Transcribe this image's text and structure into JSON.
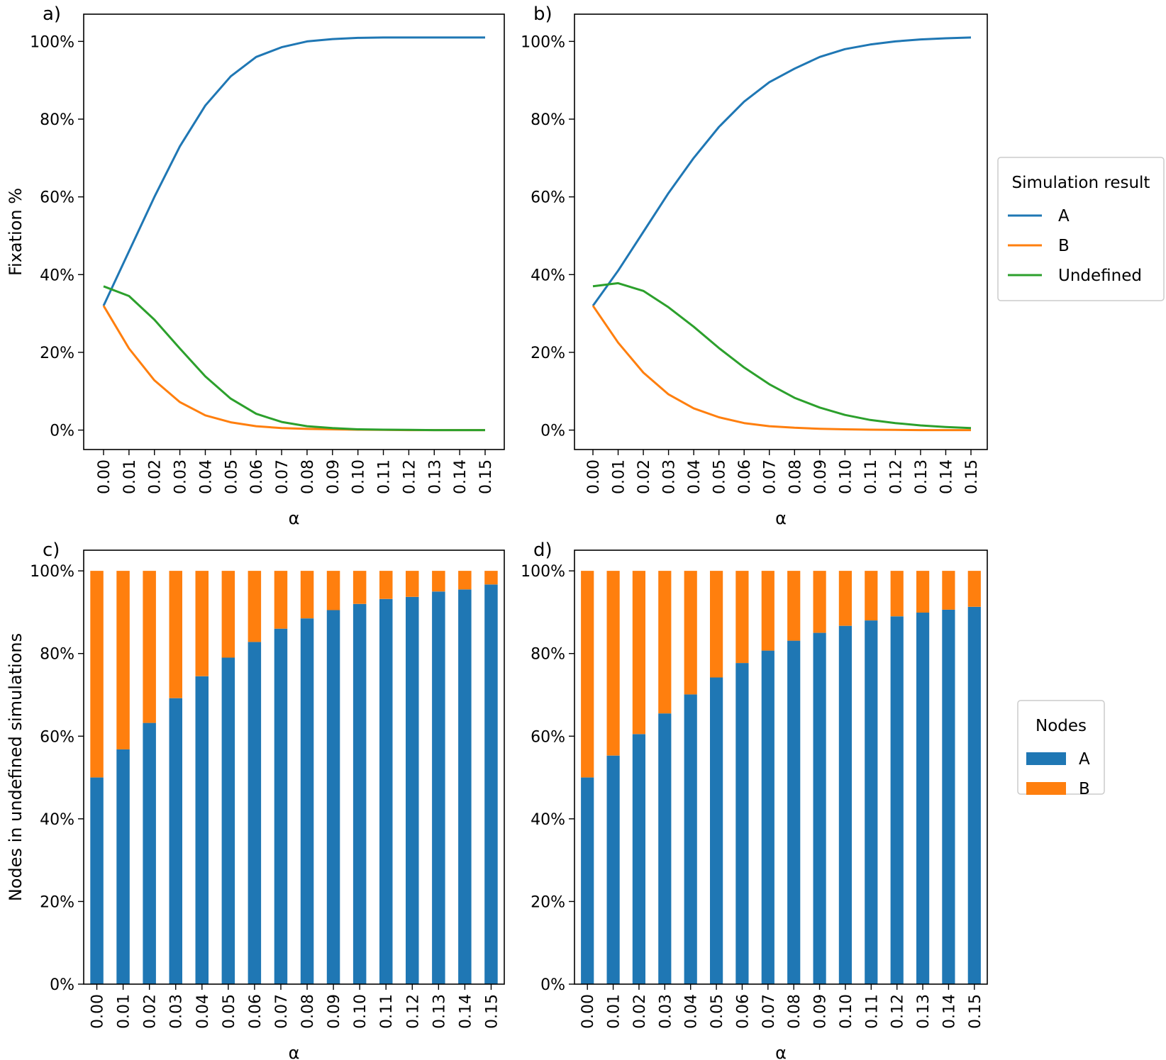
{
  "chart_data": [
    {
      "panel": "a)",
      "type": "line",
      "xlabel": "α",
      "ylabel": "Fixation %",
      "x": [
        0.0,
        0.01,
        0.02,
        0.03,
        0.04,
        0.05,
        0.06,
        0.07,
        0.08,
        0.09,
        0.1,
        0.11,
        0.12,
        0.13,
        0.14,
        0.15
      ],
      "x_ticks": [
        "0.00",
        "0.01",
        "0.02",
        "0.03",
        "0.04",
        "0.05",
        "0.06",
        "0.07",
        "0.08",
        "0.09",
        "0.10",
        "0.11",
        "0.12",
        "0.13",
        "0.14",
        "0.15"
      ],
      "y_ticks": [
        "0%",
        "20%",
        "40%",
        "60%",
        "80%",
        "100%"
      ],
      "ylim": [
        -5,
        107
      ],
      "series": [
        {
          "name": "A",
          "values": [
            32,
            46,
            60,
            73,
            83.5,
            91,
            96,
            98.5,
            100,
            100.6,
            100.9,
            101,
            101,
            101,
            101,
            101
          ]
        },
        {
          "name": "B",
          "values": [
            32,
            21,
            12.8,
            7.2,
            3.8,
            2,
            1,
            0.5,
            0.3,
            0.2,
            0.1,
            0.05,
            0,
            0,
            0,
            0
          ]
        },
        {
          "name": "Undefined",
          "values": [
            37,
            34.5,
            28.4,
            21,
            13.8,
            8.1,
            4.2,
            2.1,
            1,
            0.5,
            0.2,
            0.1,
            0.05,
            0,
            0,
            0
          ]
        }
      ]
    },
    {
      "panel": "b)",
      "type": "line",
      "xlabel": "α",
      "ylabel": "",
      "x": [
        0.0,
        0.01,
        0.02,
        0.03,
        0.04,
        0.05,
        0.06,
        0.07,
        0.08,
        0.09,
        0.1,
        0.11,
        0.12,
        0.13,
        0.14,
        0.15
      ],
      "x_ticks": [
        "0.00",
        "0.01",
        "0.02",
        "0.03",
        "0.04",
        "0.05",
        "0.06",
        "0.07",
        "0.08",
        "0.09",
        "0.10",
        "0.11",
        "0.12",
        "0.13",
        "0.14",
        "0.15"
      ],
      "y_ticks": [
        "0%",
        "20%",
        "40%",
        "60%",
        "80%",
        "100%"
      ],
      "ylim": [
        -5,
        107
      ],
      "series": [
        {
          "name": "A",
          "values": [
            32,
            41,
            51,
            61,
            70,
            78,
            84.5,
            89.5,
            93,
            96,
            98,
            99.2,
            100,
            100.5,
            100.8,
            101
          ]
        },
        {
          "name": "B",
          "values": [
            32,
            22.5,
            14.8,
            9.2,
            5.6,
            3.3,
            1.8,
            1,
            0.6,
            0.35,
            0.2,
            0.1,
            0.05,
            0,
            0,
            0
          ]
        },
        {
          "name": "Undefined",
          "values": [
            37,
            37.8,
            35.8,
            31.6,
            26.6,
            21.1,
            16.1,
            11.8,
            8.3,
            5.8,
            3.9,
            2.6,
            1.8,
            1.2,
            0.8,
            0.5
          ]
        }
      ]
    },
    {
      "panel": "c)",
      "type": "bar",
      "stacked": true,
      "xlabel": "α",
      "ylabel": "Nodes in undefined simulations",
      "categories": [
        "0.00",
        "0.01",
        "0.02",
        "0.03",
        "0.04",
        "0.05",
        "0.06",
        "0.07",
        "0.08",
        "0.09",
        "0.10",
        "0.11",
        "0.12",
        "0.13",
        "0.14",
        "0.15"
      ],
      "y_ticks": [
        "0%",
        "20%",
        "40%",
        "60%",
        "80%",
        "100%"
      ],
      "ylim": [
        0,
        105
      ],
      "series": [
        {
          "name": "A",
          "values": [
            50,
            56.8,
            63.2,
            69.2,
            74.5,
            79,
            82.8,
            86,
            88.5,
            90.5,
            92,
            93.2,
            93.7,
            95,
            95.5,
            96.7
          ]
        },
        {
          "name": "B",
          "values": [
            50,
            43.2,
            36.8,
            30.8,
            25.5,
            21,
            17.2,
            14,
            11.5,
            9.5,
            8,
            6.8,
            6.3,
            5,
            4.5,
            3.3
          ]
        }
      ]
    },
    {
      "panel": "d)",
      "type": "bar",
      "stacked": true,
      "xlabel": "α",
      "ylabel": "",
      "categories": [
        "0.00",
        "0.01",
        "0.02",
        "0.03",
        "0.04",
        "0.05",
        "0.06",
        "0.07",
        "0.08",
        "0.09",
        "0.10",
        "0.11",
        "0.12",
        "0.13",
        "0.14",
        "0.15"
      ],
      "y_ticks": [
        "0%",
        "20%",
        "40%",
        "60%",
        "80%",
        "100%"
      ],
      "ylim": [
        0,
        105
      ],
      "series": [
        {
          "name": "A",
          "values": [
            50,
            55.3,
            60.5,
            65.5,
            70.1,
            74.2,
            77.7,
            80.7,
            83.1,
            85,
            86.7,
            88,
            89,
            89.9,
            90.6,
            91.3
          ]
        },
        {
          "name": "B",
          "values": [
            50,
            44.7,
            39.5,
            34.5,
            29.9,
            25.8,
            22.3,
            19.3,
            16.9,
            15,
            13.3,
            12,
            11,
            10.1,
            9.4,
            8.7
          ]
        }
      ]
    }
  ],
  "legends": {
    "lines": {
      "title": "Simulation result",
      "items": [
        "A",
        "B",
        "Undefined"
      ]
    },
    "bars": {
      "title": "Nodes",
      "items": [
        "A",
        "B"
      ]
    }
  },
  "colors": {
    "A": "#1f77b4",
    "B": "#ff7f0e",
    "Undefined": "#2ca02c"
  }
}
